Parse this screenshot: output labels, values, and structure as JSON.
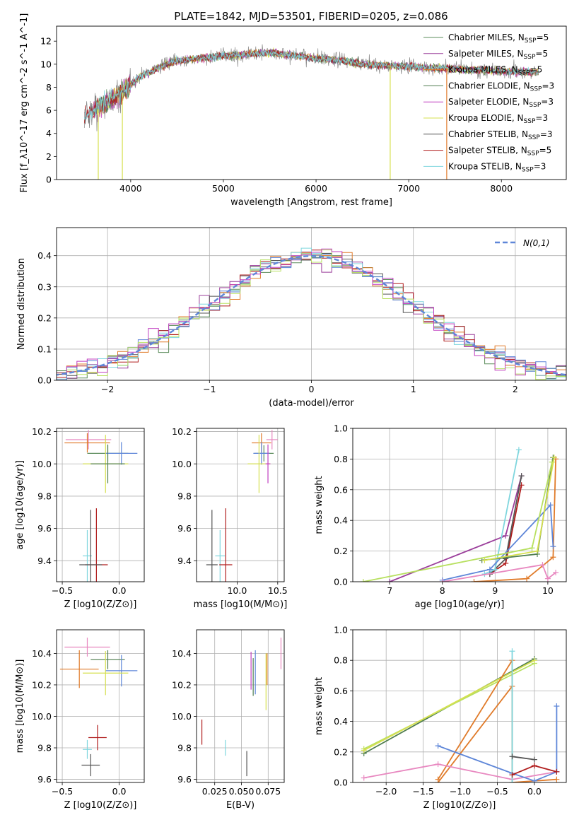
{
  "title": "PLATE=1842, MJD=53501, FIBERID=0205, z=0.086",
  "colors": {
    "Chabrier MILES": "#5b8c5b",
    "Salpeter MILES": "#9b3f9b",
    "Kroupa MILES": "#e07b2a",
    "Chabrier ELODIE": "#4f7d4f",
    "Salpeter ELODIE": "#c03fc0",
    "Kroupa ELODIE": "#d6e04f",
    "Chabrier STELIB": "#555555",
    "Salpeter STELIB": "#b01c1c",
    "Kroupa STELIB": "#7fd6de",
    "extra_blue": "#5e86d8",
    "extra_pink": "#e888c0",
    "extra_lime": "#b8e060",
    "spectrum": "#888888"
  },
  "chart_data": [
    {
      "id": "spectrum",
      "type": "line",
      "title": "PLATE=1842, MJD=53501, FIBERID=0205, z=0.086",
      "xlabel": "wavelength [Angstrom, rest frame]",
      "ylabel": "Flux [f_λ10^-17 erg cm^-2 s^-1 A^-1]",
      "xlim": [
        3200,
        8700
      ],
      "ylim": [
        0,
        13.3
      ],
      "xticks": [
        "4000",
        "5000",
        "6000",
        "7000",
        "8000"
      ],
      "yticks": [
        "0",
        "2",
        "4",
        "6",
        "8",
        "10",
        "12"
      ],
      "legend_position": "top-right",
      "legend": [
        {
          "label": "Chabrier MILES, N",
          "sub": "SSP",
          "eq": "=5"
        },
        {
          "label": "Salpeter MILES, N",
          "sub": "SSP",
          "eq": "=5"
        },
        {
          "label": "Kroupa MILES, N",
          "sub": "SSP",
          "eq": "=5"
        },
        {
          "label": "Chabrier ELODIE, N",
          "sub": "SSP",
          "eq": "=3"
        },
        {
          "label": "Salpeter ELODIE, N",
          "sub": "SSP",
          "eq": "=3"
        },
        {
          "label": "Kroupa ELODIE, N",
          "sub": "SSP",
          "eq": "=3"
        },
        {
          "label": "Chabrier STELIB, N",
          "sub": "SSP",
          "eq": "=3"
        },
        {
          "label": "Salpeter STELIB, N",
          "sub": "SSP",
          "eq": "=5"
        },
        {
          "label": "Kroupa STELIB, N",
          "sub": "SSP",
          "eq": "=3"
        }
      ],
      "continuum_x": [
        3500,
        3700,
        3900,
        4000,
        4100,
        4300,
        4500,
        5000,
        5500,
        6000,
        6300,
        6500,
        7000,
        7500,
        8000,
        8400
      ],
      "continuum_y": [
        5.5,
        6.5,
        7.5,
        8.2,
        8.9,
        9.7,
        10.3,
        10.7,
        11.0,
        10.5,
        10.3,
        10.0,
        9.8,
        9.6,
        9.4,
        9.3
      ],
      "drops": [
        [
          3620,
          3680
        ],
        [
          3900,
          3920
        ],
        [
          6790,
          6810
        ],
        [
          7400,
          7420
        ]
      ]
    },
    {
      "id": "residuals",
      "type": "step",
      "xlabel": "(data-model)/error",
      "ylabel": "Normed distribution",
      "xlim": [
        -2.5,
        2.5
      ],
      "ylim": [
        0,
        0.49
      ],
      "xticks": [
        "−2",
        "−1",
        "0",
        "1",
        "2"
      ],
      "yticks": [
        "0.0",
        "0.1",
        "0.2",
        "0.3",
        "0.4"
      ],
      "legend_position": "top-right",
      "legend_label": "N(0,1)",
      "bin_width": 0.1
    },
    {
      "id": "age_vs_Z",
      "type": "errorbar",
      "xlabel": "Z [log10(Z/Z⊙)]",
      "ylabel": "age  [log10(age/yr)]",
      "xlim": [
        -0.55,
        0.22
      ],
      "ylim": [
        9.27,
        10.22
      ],
      "xticks": [
        "−0.5",
        "0.0"
      ],
      "yticks": [
        "9.4",
        "9.6",
        "9.8",
        "10.0",
        "10.2"
      ],
      "points": [
        {
          "c": "extra_pink",
          "x": -0.27,
          "y": 10.15,
          "ex": 0.2,
          "ey": 0.06
        },
        {
          "c": "Kroupa MILES",
          "x": -0.28,
          "y": 10.13,
          "ex": 0.2,
          "ey": 0.06
        },
        {
          "c": "Chabrier MILES",
          "x": -0.1,
          "y": 10.065,
          "ex": 0.18,
          "ey": 0.05
        },
        {
          "c": "extra_blue",
          "x": 0.02,
          "y": 10.065,
          "ex": 0.14,
          "ey": 0.07
        },
        {
          "c": "Kroupa ELODIE",
          "x": -0.12,
          "y": 10.0,
          "ex": 0.2,
          "ey": 0.18
        },
        {
          "c": "Chabrier ELODIE",
          "x": -0.1,
          "y": 10.0,
          "ex": 0.15,
          "ey": 0.12
        },
        {
          "c": "Kroupa STELIB",
          "x": -0.28,
          "y": 9.43,
          "ex": 0.04,
          "ey": 0.16
        },
        {
          "c": "Salpeter STELIB",
          "x": -0.2,
          "y": 9.375,
          "ex": 0.1,
          "ey": 0.35
        },
        {
          "c": "Chabrier STELIB",
          "x": -0.25,
          "y": 9.375,
          "ex": 0.1,
          "ey": 0.34
        }
      ]
    },
    {
      "id": "age_vs_mass",
      "type": "errorbar",
      "xlabel": "mass [log10(M/M⊙)]",
      "ylabel": "",
      "xlim": [
        9.5,
        10.58
      ],
      "ylim": [
        9.27,
        10.22
      ],
      "xticks": [
        "10.0",
        "10.5"
      ],
      "yticks": [
        "9.4",
        "9.6",
        "9.8",
        "10.0",
        "10.2"
      ],
      "points": [
        {
          "c": "extra_pink",
          "x": 10.43,
          "y": 10.15,
          "ex": 0.07,
          "ey": 0.06
        },
        {
          "c": "Kroupa MILES",
          "x": 10.3,
          "y": 10.13,
          "ex": 0.12,
          "ey": 0.06
        },
        {
          "c": "Chabrier MILES",
          "x": 10.33,
          "y": 10.065,
          "ex": 0.12,
          "ey": 0.05
        },
        {
          "c": "extra_blue",
          "x": 10.3,
          "y": 10.065,
          "ex": 0.1,
          "ey": 0.07
        },
        {
          "c": "Kroupa ELODIE",
          "x": 10.27,
          "y": 10.0,
          "ex": 0.14,
          "ey": 0.18
        },
        {
          "c": "Salpeter ELODIE",
          "x": 10.38,
          "y": 10.0,
          "ex": 0.03,
          "ey": 0.12
        },
        {
          "c": "Kroupa STELIB",
          "x": 9.79,
          "y": 9.43,
          "ex": 0.06,
          "ey": 0.16
        },
        {
          "c": "Salpeter STELIB",
          "x": 9.86,
          "y": 9.375,
          "ex": 0.08,
          "ey": 0.35
        },
        {
          "c": "Chabrier STELIB",
          "x": 9.69,
          "y": 9.375,
          "ex": 0.07,
          "ey": 0.34
        }
      ]
    },
    {
      "id": "weight_vs_age",
      "type": "line",
      "xlabel": "age  [log10(age/yr)]",
      "ylabel": "mass weight",
      "xlim": [
        6.3,
        10.35
      ],
      "ylim": [
        0,
        1.0
      ],
      "xticks": [
        "7",
        "8",
        "9",
        "10"
      ],
      "yticks": [
        "0.0",
        "0.2",
        "0.4",
        "0.6",
        "0.8",
        "1.0"
      ],
      "series": [
        {
          "c": "Salpeter MILES",
          "x": [
            7.0,
            9.2,
            9.5
          ],
          "y": [
            0.0,
            0.3,
            0.69
          ]
        },
        {
          "c": "Kroupa MILES",
          "x": [
            8.6,
            9.6,
            10.1,
            10.15
          ],
          "y": [
            0.0,
            0.02,
            0.16,
            0.8
          ]
        },
        {
          "c": "Salpeter STELIB",
          "x": [
            8.9,
            9.2,
            9.5
          ],
          "y": [
            0.05,
            0.12,
            0.63
          ]
        },
        {
          "c": "Chabrier STELIB",
          "x": [
            8.9,
            9.2,
            9.5
          ],
          "y": [
            0.05,
            0.15,
            0.69
          ]
        },
        {
          "c": "Kroupa STELIB",
          "x": [
            8.8,
            9.0,
            9.45
          ],
          "y": [
            0.05,
            0.08,
            0.86
          ]
        },
        {
          "c": "extra_blue",
          "x": [
            8.0,
            8.9,
            10.05,
            10.1
          ],
          "y": [
            0.01,
            0.08,
            0.5,
            0.23
          ]
        },
        {
          "c": "Chabrier ELODIE",
          "x": [
            8.75,
            9.8,
            10.1
          ],
          "y": [
            0.14,
            0.18,
            0.81
          ]
        },
        {
          "c": "extra_lime",
          "x": [
            6.5,
            9.7,
            10.08
          ],
          "y": [
            0.0,
            0.22,
            0.78
          ]
        },
        {
          "c": "Kroupa ELODIE",
          "x": [
            8.8,
            9.8,
            10.12
          ],
          "y": [
            0.14,
            0.2,
            0.81
          ]
        },
        {
          "c": "extra_pink",
          "x": [
            8.0,
            9.9,
            10.0,
            10.15
          ],
          "y": [
            0.0,
            0.11,
            0.02,
            0.06
          ]
        }
      ]
    },
    {
      "id": "mass_vs_Z",
      "type": "errorbar",
      "xlabel": "Z [log10(Z/Z⊙)]",
      "ylabel": "mass [log10(M/M⊙)]",
      "xlim": [
        -0.55,
        0.22
      ],
      "ylim": [
        9.58,
        10.55
      ],
      "xticks": [
        "−0.5",
        "0.0"
      ],
      "yticks": [
        "9.6",
        "9.8",
        "10.0",
        "10.2",
        "10.4"
      ],
      "points": [
        {
          "c": "extra_pink",
          "x": -0.28,
          "y": 10.44,
          "ex": 0.2,
          "ey": 0.06
        },
        {
          "c": "Chabrier ELODIE",
          "x": -0.1,
          "y": 10.36,
          "ex": 0.15,
          "ey": 0.06
        },
        {
          "c": "Kroupa MILES",
          "x": -0.35,
          "y": 10.3,
          "ex": 0.17,
          "ey": 0.12
        },
        {
          "c": "extra_blue",
          "x": 0.02,
          "y": 10.29,
          "ex": 0.14,
          "ey": 0.1
        },
        {
          "c": "Kroupa ELODIE",
          "x": -0.12,
          "y": 10.275,
          "ex": 0.2,
          "ey": 0.14
        },
        {
          "c": "Salpeter STELIB",
          "x": -0.19,
          "y": 9.865,
          "ex": 0.08,
          "ey": 0.08
        },
        {
          "c": "Kroupa STELIB",
          "x": -0.28,
          "y": 9.79,
          "ex": 0.04,
          "ey": 0.06
        },
        {
          "c": "Chabrier STELIB",
          "x": -0.25,
          "y": 9.69,
          "ex": 0.08,
          "ey": 0.07
        }
      ]
    },
    {
      "id": "mass_vs_ebv",
      "type": "errorbar",
      "xlabel": "E(B-V)",
      "ylabel": "",
      "xlim": [
        0.008,
        0.09
      ],
      "ylim": [
        9.58,
        10.55
      ],
      "xticks": [
        "0.025",
        "0.050",
        "0.075"
      ],
      "yticks": [
        "9.6",
        "9.8",
        "10.0",
        "10.2",
        "10.4"
      ],
      "points": [
        {
          "c": "extra_pink",
          "x": 0.087,
          "y": 10.4,
          "ex": 0,
          "ey": 0.1
        },
        {
          "c": "Salpeter ELODIE",
          "x": 0.059,
          "y": 10.29,
          "ex": 0,
          "ey": 0.12
        },
        {
          "c": "extra_blue",
          "x": 0.063,
          "y": 10.28,
          "ex": 0,
          "ey": 0.14
        },
        {
          "c": "Chabrier ELODIE",
          "x": 0.061,
          "y": 10.25,
          "ex": 0,
          "ey": 0.12
        },
        {
          "c": "Kroupa MILES",
          "x": 0.074,
          "y": 10.3,
          "ex": 0,
          "ey": 0.1
        },
        {
          "c": "Kroupa ELODIE",
          "x": 0.073,
          "y": 10.22,
          "ex": 0,
          "ey": 0.18
        },
        {
          "c": "Salpeter STELIB",
          "x": 0.013,
          "y": 9.9,
          "ex": 0,
          "ey": 0.08
        },
        {
          "c": "Kroupa STELIB",
          "x": 0.035,
          "y": 9.8,
          "ex": 0,
          "ey": 0.05
        },
        {
          "c": "Chabrier STELIB",
          "x": 0.055,
          "y": 9.7,
          "ex": 0,
          "ey": 0.08
        }
      ]
    },
    {
      "id": "weight_vs_Z",
      "type": "line",
      "xlabel": "Z [log10(Z/Z⊙)]",
      "ylabel": "mass weight",
      "xlim": [
        -2.45,
        0.43
      ],
      "ylim": [
        0,
        1.0
      ],
      "xticks": [
        "−2.0",
        "−1.5",
        "−1.0",
        "−0.5",
        "0.0"
      ],
      "yticks": [
        "0.0",
        "0.2",
        "0.4",
        "0.6",
        "0.8",
        "1.0"
      ],
      "series": [
        {
          "c": "Chabrier ELODIE",
          "x": [
            -2.3,
            0.0
          ],
          "y": [
            0.19,
            0.81
          ]
        },
        {
          "c": "extra_lime",
          "x": [
            -2.3,
            0.0
          ],
          "y": [
            0.22,
            0.78
          ]
        },
        {
          "c": "Kroupa ELODIE",
          "x": [
            -2.3,
            0.0
          ],
          "y": [
            0.21,
            0.8
          ]
        },
        {
          "c": "Kroupa MILES",
          "x": [
            -1.3,
            -0.3,
            -0.3,
            0.3
          ],
          "y": [
            0.02,
            0.8,
            0.0,
            0.02
          ]
        },
        {
          "c": "Kroupa MILES",
          "x": [
            -1.3,
            -0.3
          ],
          "y": [
            0.0,
            0.63
          ]
        },
        {
          "c": "extra_pink",
          "x": [
            -2.3,
            -1.3,
            -0.3,
            0.3
          ],
          "y": [
            0.03,
            0.12,
            0.02,
            0.07
          ]
        },
        {
          "c": "extra_blue",
          "x": [
            -1.3,
            -0.3,
            0.0,
            0.3,
            0.3
          ],
          "y": [
            0.24,
            0.06,
            0.01,
            0.07,
            0.5
          ]
        },
        {
          "c": "Kroupa STELIB",
          "x": [
            -0.3,
            -0.3
          ],
          "y": [
            0.0,
            0.86
          ]
        },
        {
          "c": "Salpeter STELIB",
          "x": [
            -0.3,
            0.0,
            0.3
          ],
          "y": [
            0.05,
            0.11,
            0.07
          ]
        },
        {
          "c": "Chabrier STELIB",
          "x": [
            -0.3,
            0.0
          ],
          "y": [
            0.17,
            0.15
          ]
        }
      ]
    }
  ]
}
